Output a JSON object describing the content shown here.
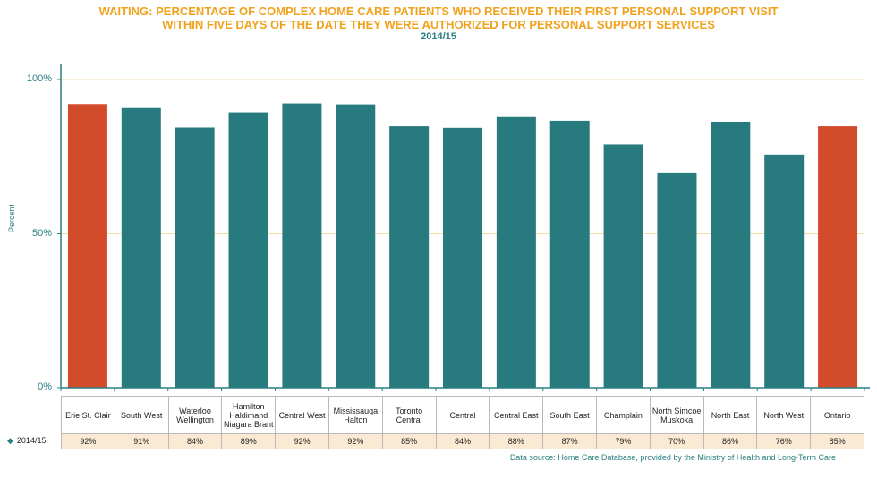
{
  "colors": {
    "highlight": "#d24b2a",
    "regular": "#277b7e",
    "title": "#f0a21d",
    "axis": "#2a7f82",
    "grid": "#f3dfa4"
  },
  "chart_data": {
    "type": "bar",
    "title_line1": "WAITING: PERCENTAGE OF COMPLEX HOME CARE PATIENTS WHO RECEIVED THEIR FIRST PERSONAL SUPPORT VISIT",
    "title_line2": "WITHIN FIVE DAYS OF THE DATE THEY WERE AUTHORIZED FOR PERSONAL SUPPORT SERVICES",
    "subtitle": "2014/15",
    "ylabel": "Percent",
    "ylim": [
      0,
      100
    ],
    "yticks": [
      "0%",
      "50%",
      "100%"
    ],
    "grid": true,
    "categories": [
      "Erie St. Clair",
      "South West",
      "Waterloo Wellington",
      "Hamilton Haldimand Niagara Brant",
      "Central West",
      "Mississauga Halton",
      "Toronto Central",
      "Central",
      "Central East",
      "South East",
      "Champlain",
      "North Simcoe Muskoka",
      "North East",
      "North West",
      "Ontario"
    ],
    "highlighted": [
      "Erie St. Clair",
      "Ontario"
    ],
    "series": [
      {
        "name": "2014/15",
        "values": [
          92.1,
          90.8,
          84.5,
          89.4,
          92.3,
          92.0,
          84.9,
          84.4,
          87.9,
          86.7,
          79.0,
          69.6,
          86.2,
          75.7,
          84.9
        ],
        "labels": [
          "92%",
          "91%",
          "84%",
          "89%",
          "92%",
          "92%",
          "85%",
          "84%",
          "88%",
          "87%",
          "79%",
          "70%",
          "86%",
          "76%",
          "85%"
        ]
      }
    ],
    "source": "Data source: Home Care Database, provided by the Ministry of Health and Long-Term Care"
  }
}
